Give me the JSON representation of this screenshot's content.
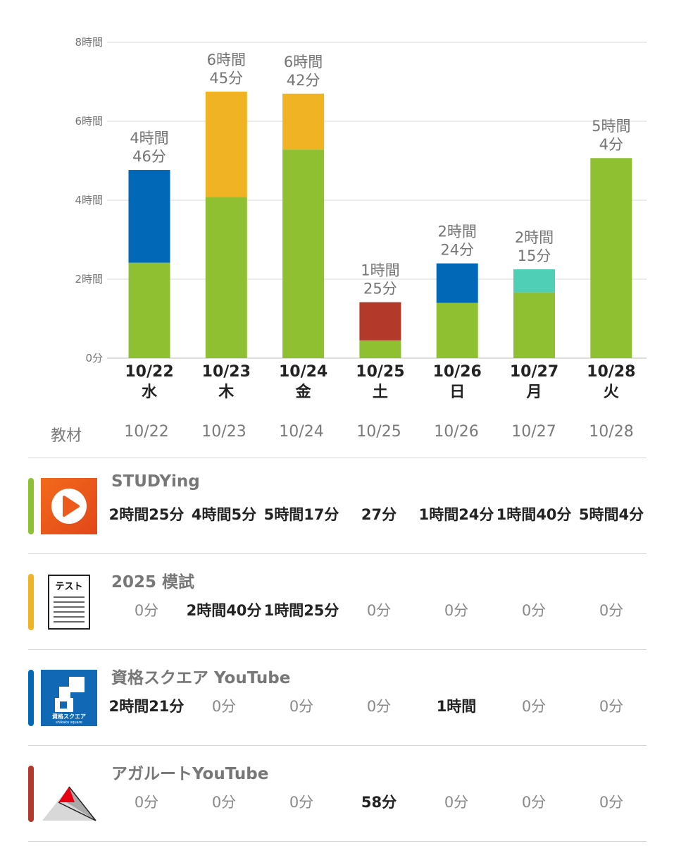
{
  "chart_data": {
    "type": "bar",
    "stacked": true,
    "ylim": [
      0,
      8
    ],
    "y_ticks": [
      "0分",
      "2時間",
      "4時間",
      "6時間",
      "8時間"
    ],
    "grid": true,
    "categories": [
      {
        "date": "10/22",
        "weekday": "水"
      },
      {
        "date": "10/23",
        "weekday": "木"
      },
      {
        "date": "10/24",
        "weekday": "金"
      },
      {
        "date": "10/25",
        "weekday": "土"
      },
      {
        "date": "10/26",
        "weekday": "日"
      },
      {
        "date": "10/27",
        "weekday": "月"
      },
      {
        "date": "10/28",
        "weekday": "火"
      }
    ],
    "totals": [
      [
        "4時間",
        "46分"
      ],
      [
        "6時間",
        "45分"
      ],
      [
        "6時間",
        "42分"
      ],
      [
        "1時間",
        "25分"
      ],
      [
        "2時間",
        "24分"
      ],
      [
        "2時間",
        "15分"
      ],
      [
        "5時間",
        "4分"
      ]
    ],
    "series": [
      {
        "name": "STUDYing",
        "color": "#8fc031",
        "values": [
          2.417,
          4.083,
          5.283,
          0.45,
          1.4,
          1.667,
          5.067
        ]
      },
      {
        "name": "2025 模試",
        "color": "#f0b323",
        "values": [
          0,
          2.667,
          1.417,
          0,
          0,
          0,
          0
        ]
      },
      {
        "name": "資格スクエア YouTube",
        "color": "#0068b7",
        "values": [
          2.35,
          0,
          0,
          0,
          1.0,
          0,
          0
        ]
      },
      {
        "name": "アガルートYouTube",
        "color": "#b33a2a",
        "values": [
          0,
          0,
          0,
          0.967,
          0,
          0,
          0
        ]
      },
      {
        "name": "",
        "color": "#4fcfb5",
        "values": [
          0,
          0,
          0,
          0,
          0,
          0.583,
          0
        ]
      }
    ]
  },
  "table": {
    "header_label": "教材",
    "dates": [
      "10/22",
      "10/23",
      "10/24",
      "10/25",
      "10/26",
      "10/27",
      "10/28"
    ],
    "rows": [
      {
        "name": "STUDYing",
        "color": "#8fc031",
        "logo_icon": "play-icon",
        "cells": [
          "2時間25分",
          "4時間5分",
          "5時間17分",
          "27分",
          "1時間24分",
          "1時間40分",
          "5時間4分"
        ]
      },
      {
        "name": "2025 模試",
        "color": "#f0b323",
        "logo_icon": "test-paper-icon",
        "logo_text": "テスト",
        "cells": [
          "0分",
          "2時間40分",
          "1時間25分",
          "0分",
          "0分",
          "0分",
          "0分"
        ]
      },
      {
        "name": "資格スクエア YouTube",
        "color": "#0068b7",
        "logo_icon": "shikaku-square-logo-icon",
        "logo_text": "資格スクエア",
        "logo_subtext": "shikaku square",
        "cells": [
          "2時間21分",
          "0分",
          "0分",
          "0分",
          "1時間",
          "0分",
          "0分"
        ]
      },
      {
        "name": "アガルートYouTube",
        "color": "#b33a2a",
        "logo_icon": "agaroot-triangle-logo-icon",
        "cells": [
          "0分",
          "0分",
          "0分",
          "58分",
          "0分",
          "0分",
          "0分"
        ]
      }
    ]
  }
}
